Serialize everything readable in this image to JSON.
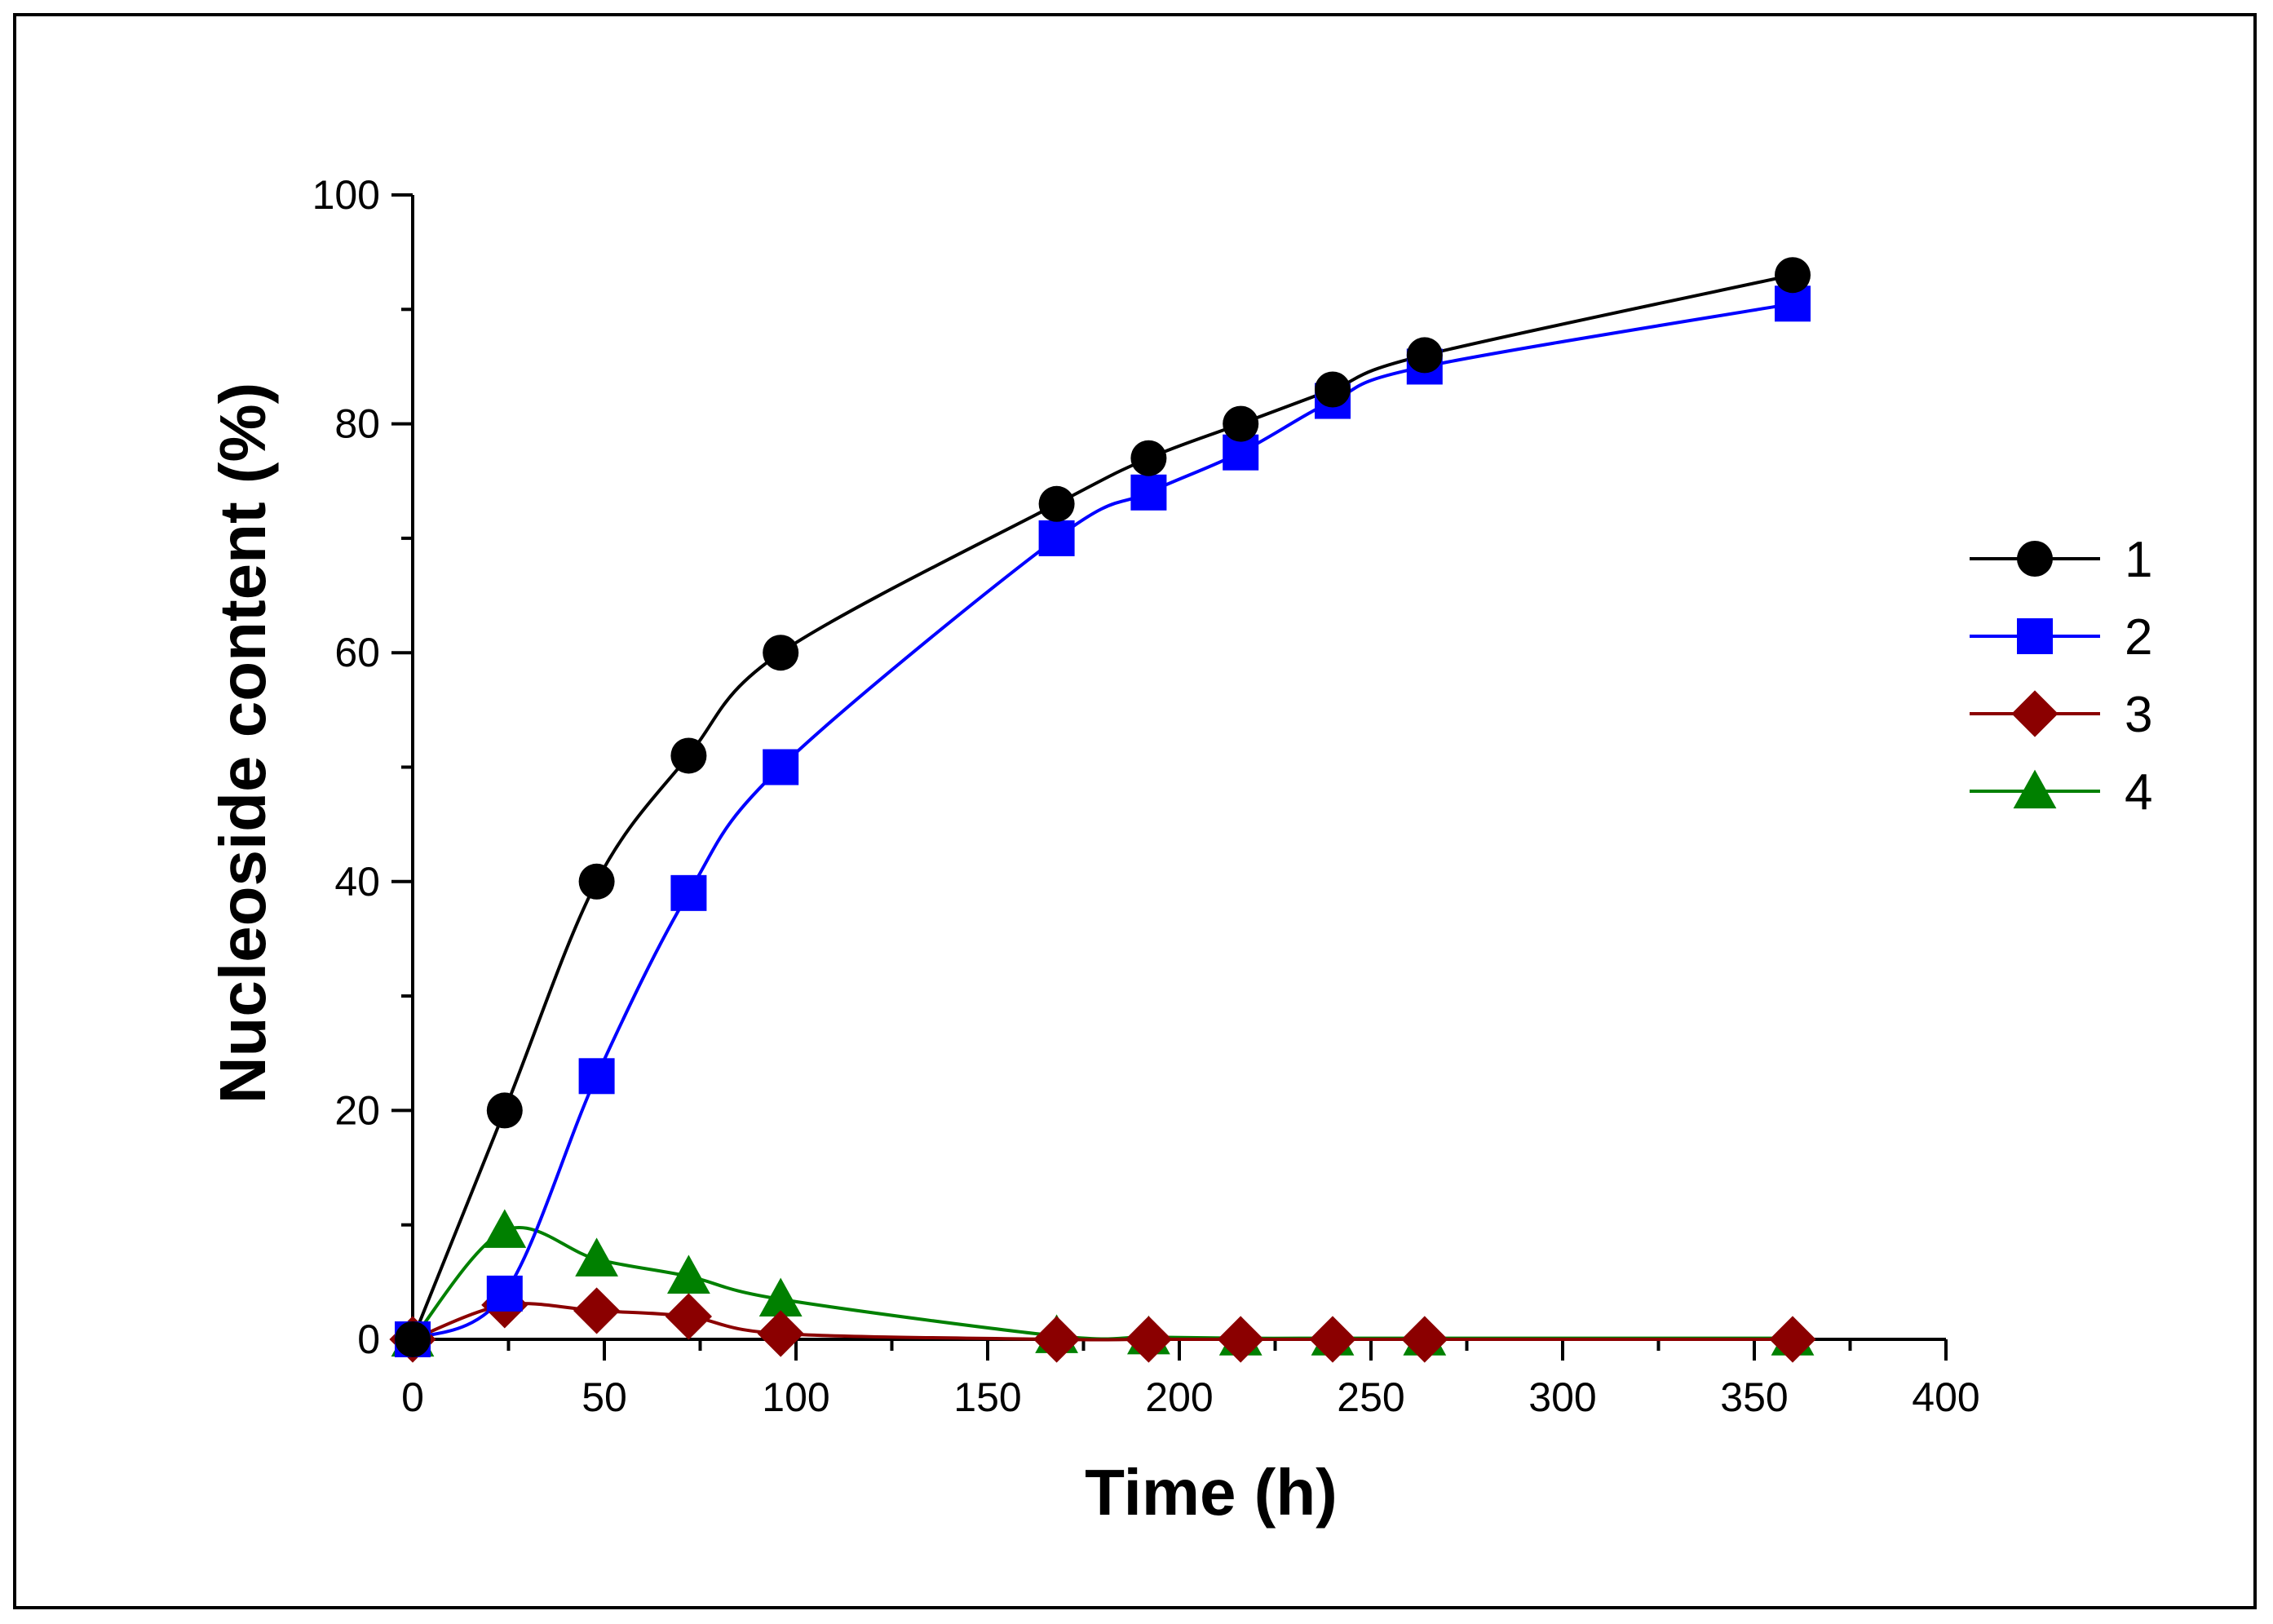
{
  "chart_data": {
    "type": "line",
    "title": "",
    "xlabel": "Time (h)",
    "ylabel": "Nucleoside content (%)",
    "xlim": [
      0,
      400
    ],
    "ylim": [
      0,
      100
    ],
    "x_ticks": [
      0,
      50,
      100,
      150,
      200,
      250,
      300,
      350,
      400
    ],
    "y_ticks": [
      0,
      20,
      40,
      60,
      80,
      100
    ],
    "x_tick_labels": [
      "0",
      "50",
      "100",
      "150",
      "200",
      "250",
      "300",
      "350",
      "400"
    ],
    "y_tick_labels": [
      "0",
      "20",
      "40",
      "60",
      "80",
      "100"
    ],
    "grid": false,
    "legend_position": "right",
    "series": [
      {
        "name": "1",
        "color": "#000000",
        "marker": "circle",
        "x": [
          0,
          24,
          48,
          72,
          96,
          168,
          192,
          216,
          240,
          264,
          360
        ],
        "y": [
          0,
          20,
          40,
          51,
          60,
          73,
          77,
          80,
          83,
          86,
          93
        ]
      },
      {
        "name": "2",
        "color": "#0000ff",
        "marker": "square",
        "x": [
          0,
          24,
          48,
          72,
          96,
          168,
          192,
          216,
          240,
          264,
          360
        ],
        "y": [
          0,
          4,
          23,
          39,
          50,
          70,
          74,
          77.5,
          82,
          85,
          90.5
        ]
      },
      {
        "name": "3",
        "color": "#8b0000",
        "marker": "diamond",
        "x": [
          0,
          24,
          48,
          72,
          96,
          168,
          192,
          216,
          240,
          264,
          360
        ],
        "y": [
          0,
          3,
          2.5,
          2,
          0.5,
          0,
          0,
          0,
          0,
          0,
          0
        ]
      },
      {
        "name": "4",
        "color": "#008000",
        "marker": "triangle",
        "x": [
          0,
          24,
          48,
          72,
          96,
          168,
          192,
          216,
          240,
          264,
          360
        ],
        "y": [
          0,
          9.5,
          7,
          5.5,
          3.5,
          0.3,
          0.2,
          0.1,
          0.1,
          0.1,
          0.1
        ]
      }
    ]
  }
}
